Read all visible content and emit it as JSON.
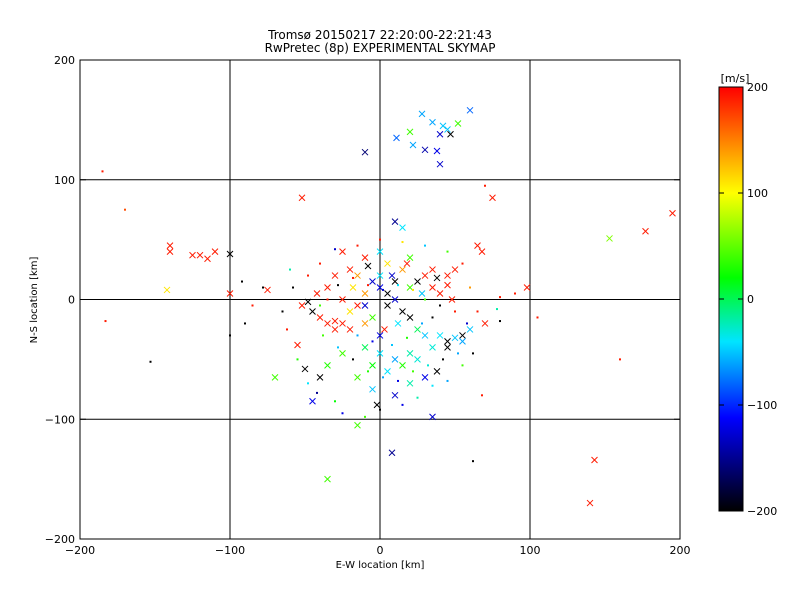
{
  "chart_data": {
    "type": "scatter",
    "title": "Tromsø 20150217 22:20:00-22:21:43",
    "subtitle": "RwPretec (8p) EXPERIMENTAL SKYMAP",
    "xlabel": "E-W location [km]",
    "ylabel": "N-S location [km]",
    "xlim": [
      -200,
      200
    ],
    "ylim": [
      -200,
      200
    ],
    "xticks": [
      -200,
      -100,
      0,
      100,
      200
    ],
    "yticks": [
      -200,
      -100,
      0,
      100,
      200
    ],
    "xtick_labels": [
      "−200",
      "−100",
      "0",
      "100",
      "200"
    ],
    "ytick_labels": [
      "−200",
      "−100",
      "0",
      "100",
      "200"
    ],
    "grid": true,
    "colorbar": {
      "label": "[m/s]",
      "range": [
        -200,
        200
      ],
      "ticks": [
        200,
        100,
        0,
        -100,
        -200
      ],
      "tick_labels": [
        "200",
        "100",
        "0",
        "−100",
        "−200"
      ],
      "colors": [
        "#000000",
        "#0000ff",
        "#00e5ff",
        "#00ff00",
        "#ffff00",
        "#ff0000"
      ]
    },
    "points": [
      {
        "x": 45,
        "y": 142,
        "v": -50,
        "m": "x"
      },
      {
        "x": 52,
        "y": 147,
        "v": 40,
        "m": "x"
      },
      {
        "x": 60,
        "y": 158,
        "v": -80,
        "m": "x"
      },
      {
        "x": 28,
        "y": 155,
        "v": -60,
        "m": "x"
      },
      {
        "x": 35,
        "y": 148,
        "v": -60,
        "m": "x"
      },
      {
        "x": 40,
        "y": 138,
        "v": -130,
        "m": "x"
      },
      {
        "x": 20,
        "y": 140,
        "v": 40,
        "m": "x"
      },
      {
        "x": 38,
        "y": 124,
        "v": -120,
        "m": "x"
      },
      {
        "x": 30,
        "y": 125,
        "v": -140,
        "m": "x"
      },
      {
        "x": 22,
        "y": 129,
        "v": -60,
        "m": "x"
      },
      {
        "x": 40,
        "y": 113,
        "v": -130,
        "m": "x"
      },
      {
        "x": 47,
        "y": 138,
        "v": -200,
        "m": "x"
      },
      {
        "x": 42,
        "y": 145,
        "v": -50,
        "m": "x"
      },
      {
        "x": 11,
        "y": 135,
        "v": -80,
        "m": "x"
      },
      {
        "x": -10,
        "y": 123,
        "v": -160,
        "m": "x"
      },
      {
        "x": -185,
        "y": 107,
        "v": 190,
        "m": "."
      },
      {
        "x": -170,
        "y": 75,
        "v": 170,
        "m": "."
      },
      {
        "x": -52,
        "y": 85,
        "v": 190,
        "m": "x"
      },
      {
        "x": 75,
        "y": 85,
        "v": 190,
        "m": "x"
      },
      {
        "x": 70,
        "y": 95,
        "v": 190,
        "m": "."
      },
      {
        "x": 195,
        "y": 72,
        "v": 190,
        "m": "x"
      },
      {
        "x": 177,
        "y": 57,
        "v": 190,
        "m": "x"
      },
      {
        "x": 153,
        "y": 51,
        "v": 60,
        "m": "x"
      },
      {
        "x": -140,
        "y": 45,
        "v": 190,
        "m": "x"
      },
      {
        "x": -140,
        "y": 40,
        "v": 190,
        "m": "x"
      },
      {
        "x": -125,
        "y": 37,
        "v": 190,
        "m": "x"
      },
      {
        "x": -120,
        "y": 37,
        "v": 190,
        "m": "x"
      },
      {
        "x": -115,
        "y": 34,
        "v": 190,
        "m": "x"
      },
      {
        "x": -110,
        "y": 40,
        "v": 190,
        "m": "x"
      },
      {
        "x": -100,
        "y": 38,
        "v": -200,
        "m": "x"
      },
      {
        "x": -142,
        "y": 8,
        "v": 110,
        "m": "x"
      },
      {
        "x": -100,
        "y": 5,
        "v": 190,
        "m": "x"
      },
      {
        "x": -183,
        "y": -18,
        "v": 190,
        "m": "."
      },
      {
        "x": -153,
        "y": -52,
        "v": -200,
        "m": "."
      },
      {
        "x": -100,
        "y": -30,
        "v": -200,
        "m": "."
      },
      {
        "x": -92,
        "y": 15,
        "v": -200,
        "m": "."
      },
      {
        "x": -75,
        "y": 8,
        "v": 190,
        "m": "x"
      },
      {
        "x": 10,
        "y": 65,
        "v": -150,
        "m": "x"
      },
      {
        "x": 15,
        "y": 60,
        "v": -40,
        "m": "x"
      },
      {
        "x": 98,
        "y": 10,
        "v": 190,
        "m": "x"
      },
      {
        "x": 90,
        "y": 5,
        "v": 190,
        "m": "."
      },
      {
        "x": 65,
        "y": 45,
        "v": 190,
        "m": "x"
      },
      {
        "x": 68,
        "y": 40,
        "v": 190,
        "m": "x"
      },
      {
        "x": 160,
        "y": -50,
        "v": 190,
        "m": "."
      },
      {
        "x": 143,
        "y": -134,
        "v": 190,
        "m": "x"
      },
      {
        "x": 140,
        "y": -170,
        "v": 190,
        "m": "x"
      },
      {
        "x": 62,
        "y": -135,
        "v": -200,
        "m": "."
      },
      {
        "x": 8,
        "y": -128,
        "v": -150,
        "m": "x"
      },
      {
        "x": -35,
        "y": -150,
        "v": 40,
        "m": "x"
      },
      {
        "x": -15,
        "y": -105,
        "v": 40,
        "m": "x"
      },
      {
        "x": 35,
        "y": -98,
        "v": -130,
        "m": "x"
      },
      {
        "x": -45,
        "y": -85,
        "v": -120,
        "m": "x"
      },
      {
        "x": -70,
        "y": -65,
        "v": 40,
        "m": "x"
      },
      {
        "x": -50,
        "y": -58,
        "v": -200,
        "m": "x"
      },
      {
        "x": -40,
        "y": -65,
        "v": -200,
        "m": "x"
      },
      {
        "x": -55,
        "y": -38,
        "v": 190,
        "m": "x"
      },
      {
        "x": 68,
        "y": -80,
        "v": 190,
        "m": "."
      },
      {
        "x": 38,
        "y": -60,
        "v": -200,
        "m": "x"
      },
      {
        "x": 45,
        "y": -35,
        "v": -200,
        "m": "x"
      },
      {
        "x": 55,
        "y": -30,
        "v": -200,
        "m": "x"
      },
      {
        "x": 60,
        "y": -25,
        "v": -50,
        "m": "x"
      },
      {
        "x": 70,
        "y": -20,
        "v": 190,
        "m": "x"
      },
      {
        "x": 80,
        "y": -18,
        "v": -200,
        "m": "."
      },
      {
        "x": 105,
        "y": -15,
        "v": 190,
        "m": "."
      },
      {
        "x": -25,
        "y": 40,
        "v": 190,
        "m": "x"
      },
      {
        "x": -10,
        "y": 35,
        "v": 190,
        "m": "x"
      },
      {
        "x": 0,
        "y": 40,
        "v": -40,
        "m": "x"
      },
      {
        "x": 5,
        "y": 30,
        "v": 110,
        "m": "x"
      },
      {
        "x": 15,
        "y": 25,
        "v": 140,
        "m": "x"
      },
      {
        "x": 20,
        "y": 35,
        "v": 40,
        "m": "x"
      },
      {
        "x": 30,
        "y": 20,
        "v": 190,
        "m": "x"
      },
      {
        "x": 35,
        "y": 25,
        "v": 190,
        "m": "x"
      },
      {
        "x": 45,
        "y": 20,
        "v": 190,
        "m": "x"
      },
      {
        "x": 50,
        "y": 25,
        "v": 190,
        "m": "x"
      },
      {
        "x": 25,
        "y": 15,
        "v": -200,
        "m": "x"
      },
      {
        "x": -5,
        "y": 15,
        "v": -130,
        "m": "x"
      },
      {
        "x": 0,
        "y": 10,
        "v": -120,
        "m": "x"
      },
      {
        "x": 5,
        "y": 5,
        "v": -200,
        "m": "x"
      },
      {
        "x": 10,
        "y": 0,
        "v": -130,
        "m": "x"
      },
      {
        "x": -10,
        "y": 5,
        "v": 140,
        "m": "x"
      },
      {
        "x": -15,
        "y": -5,
        "v": 190,
        "m": "x"
      },
      {
        "x": -20,
        "y": -10,
        "v": 110,
        "m": "x"
      },
      {
        "x": -25,
        "y": -20,
        "v": 190,
        "m": "x"
      },
      {
        "x": -30,
        "y": -18,
        "v": 190,
        "m": "x"
      },
      {
        "x": -35,
        "y": -20,
        "v": 190,
        "m": "x"
      },
      {
        "x": -40,
        "y": -15,
        "v": 190,
        "m": "x"
      },
      {
        "x": -30,
        "y": -25,
        "v": 190,
        "m": "x"
      },
      {
        "x": -20,
        "y": -25,
        "v": 190,
        "m": "x"
      },
      {
        "x": -10,
        "y": -20,
        "v": 140,
        "m": "x"
      },
      {
        "x": -5,
        "y": -15,
        "v": 40,
        "m": "x"
      },
      {
        "x": 15,
        "y": -10,
        "v": -200,
        "m": "x"
      },
      {
        "x": 20,
        "y": -15,
        "v": -200,
        "m": "x"
      },
      {
        "x": 25,
        "y": -25,
        "v": 0,
        "m": "x"
      },
      {
        "x": 30,
        "y": -30,
        "v": -50,
        "m": "x"
      },
      {
        "x": 40,
        "y": -30,
        "v": -40,
        "m": "x"
      },
      {
        "x": 50,
        "y": -32,
        "v": -50,
        "m": "x"
      },
      {
        "x": 55,
        "y": -35,
        "v": -60,
        "m": "x"
      },
      {
        "x": 45,
        "y": -40,
        "v": -200,
        "m": "x"
      },
      {
        "x": 35,
        "y": -40,
        "v": -30,
        "m": "x"
      },
      {
        "x": 20,
        "y": -45,
        "v": -20,
        "m": "x"
      },
      {
        "x": 10,
        "y": -50,
        "v": -60,
        "m": "x"
      },
      {
        "x": 0,
        "y": -45,
        "v": -40,
        "m": "x"
      },
      {
        "x": -10,
        "y": -40,
        "v": 0,
        "m": "x"
      },
      {
        "x": 0,
        "y": -30,
        "v": -120,
        "m": "x"
      },
      {
        "x": -5,
        "y": -55,
        "v": 20,
        "m": "x"
      },
      {
        "x": 5,
        "y": -60,
        "v": -40,
        "m": "x"
      },
      {
        "x": 15,
        "y": -55,
        "v": 30,
        "m": "x"
      },
      {
        "x": 25,
        "y": -50,
        "v": -30,
        "m": "x"
      },
      {
        "x": -25,
        "y": -45,
        "v": 40,
        "m": "x"
      },
      {
        "x": -35,
        "y": -55,
        "v": 30,
        "m": "x"
      },
      {
        "x": -15,
        "y": -65,
        "v": 40,
        "m": "x"
      },
      {
        "x": -5,
        "y": -75,
        "v": -50,
        "m": "x"
      },
      {
        "x": 10,
        "y": -80,
        "v": -130,
        "m": "x"
      },
      {
        "x": -2,
        "y": -88,
        "v": -200,
        "m": "x"
      },
      {
        "x": 20,
        "y": -70,
        "v": -20,
        "m": "x"
      },
      {
        "x": 30,
        "y": -65,
        "v": -120,
        "m": "x"
      },
      {
        "x": -45,
        "y": -10,
        "v": -200,
        "m": "x"
      },
      {
        "x": -48,
        "y": -2,
        "v": -200,
        "m": "x"
      },
      {
        "x": -52,
        "y": -5,
        "v": 190,
        "m": "x"
      },
      {
        "x": -42,
        "y": 5,
        "v": 190,
        "m": "x"
      },
      {
        "x": -35,
        "y": 10,
        "v": 190,
        "m": "x"
      },
      {
        "x": -30,
        "y": 20,
        "v": 190,
        "m": "x"
      },
      {
        "x": -20,
        "y": 25,
        "v": 190,
        "m": "x"
      },
      {
        "x": -15,
        "y": 20,
        "v": 140,
        "m": "x"
      },
      {
        "x": 0,
        "y": 20,
        "v": -40,
        "m": "x"
      },
      {
        "x": 10,
        "y": 15,
        "v": -200,
        "m": "x"
      },
      {
        "x": 20,
        "y": 10,
        "v": 40,
        "m": "x"
      },
      {
        "x": 28,
        "y": 5,
        "v": -50,
        "m": "x"
      },
      {
        "x": 35,
        "y": 10,
        "v": 190,
        "m": "x"
      },
      {
        "x": 40,
        "y": 5,
        "v": 190,
        "m": "x"
      },
      {
        "x": 48,
        "y": 0,
        "v": 190,
        "m": "x"
      },
      {
        "x": 45,
        "y": 12,
        "v": 190,
        "m": "x"
      },
      {
        "x": 38,
        "y": 18,
        "v": -200,
        "m": "x"
      },
      {
        "x": 18,
        "y": 30,
        "v": 190,
        "m": "x"
      },
      {
        "x": 8,
        "y": 20,
        "v": -130,
        "m": "x"
      },
      {
        "x": -8,
        "y": 28,
        "v": -200,
        "m": "x"
      },
      {
        "x": -18,
        "y": 10,
        "v": 110,
        "m": "x"
      },
      {
        "x": -25,
        "y": 0,
        "v": 190,
        "m": "x"
      },
      {
        "x": -10,
        "y": -5,
        "v": -130,
        "m": "x"
      },
      {
        "x": 5,
        "y": -5,
        "v": -200,
        "m": "x"
      },
      {
        "x": 12,
        "y": -20,
        "v": -40,
        "m": "x"
      },
      {
        "x": 3,
        "y": -25,
        "v": 190,
        "m": "x"
      },
      {
        "x": -60,
        "y": 25,
        "v": -20,
        "m": "."
      },
      {
        "x": -58,
        "y": 10,
        "v": -200,
        "m": "."
      },
      {
        "x": -65,
        "y": -10,
        "v": -200,
        "m": "."
      },
      {
        "x": -62,
        "y": -25,
        "v": 190,
        "m": "."
      },
      {
        "x": -55,
        "y": -50,
        "v": 30,
        "m": "."
      },
      {
        "x": -48,
        "y": -70,
        "v": -40,
        "m": "."
      },
      {
        "x": -42,
        "y": -78,
        "v": -150,
        "m": "."
      },
      {
        "x": -30,
        "y": -85,
        "v": 20,
        "m": "."
      },
      {
        "x": -25,
        "y": -95,
        "v": -120,
        "m": "."
      },
      {
        "x": -10,
        "y": -98,
        "v": 40,
        "m": "."
      },
      {
        "x": 0,
        "y": -92,
        "v": -200,
        "m": "."
      },
      {
        "x": 15,
        "y": -88,
        "v": -120,
        "m": "."
      },
      {
        "x": 25,
        "y": -82,
        "v": -20,
        "m": "."
      },
      {
        "x": 35,
        "y": -72,
        "v": -40,
        "m": "."
      },
      {
        "x": 45,
        "y": -68,
        "v": -60,
        "m": "."
      },
      {
        "x": 55,
        "y": -55,
        "v": 40,
        "m": "."
      },
      {
        "x": 62,
        "y": -45,
        "v": -200,
        "m": "."
      },
      {
        "x": 65,
        "y": -10,
        "v": 190,
        "m": "."
      },
      {
        "x": 60,
        "y": 10,
        "v": 140,
        "m": "."
      },
      {
        "x": 55,
        "y": 30,
        "v": 190,
        "m": "."
      },
      {
        "x": 45,
        "y": 40,
        "v": 40,
        "m": "."
      },
      {
        "x": 30,
        "y": 45,
        "v": -50,
        "m": "."
      },
      {
        "x": 15,
        "y": 48,
        "v": 110,
        "m": "."
      },
      {
        "x": 0,
        "y": 50,
        "v": 190,
        "m": "."
      },
      {
        "x": -15,
        "y": 45,
        "v": 190,
        "m": "."
      },
      {
        "x": -30,
        "y": 42,
        "v": -130,
        "m": "."
      },
      {
        "x": -40,
        "y": 30,
        "v": 190,
        "m": "."
      },
      {
        "x": -48,
        "y": 20,
        "v": 190,
        "m": "."
      },
      {
        "x": -38,
        "y": -30,
        "v": 40,
        "m": "."
      },
      {
        "x": -28,
        "y": -40,
        "v": -50,
        "m": "."
      },
      {
        "x": -18,
        "y": -50,
        "v": -200,
        "m": "."
      },
      {
        "x": -8,
        "y": -60,
        "v": 30,
        "m": "."
      },
      {
        "x": 2,
        "y": -65,
        "v": -60,
        "m": "."
      },
      {
        "x": 12,
        "y": -68,
        "v": -120,
        "m": "."
      },
      {
        "x": 22,
        "y": -60,
        "v": 40,
        "m": "."
      },
      {
        "x": 32,
        "y": -55,
        "v": -30,
        "m": "."
      },
      {
        "x": 42,
        "y": -50,
        "v": -200,
        "m": "."
      },
      {
        "x": 52,
        "y": -45,
        "v": -60,
        "m": "."
      },
      {
        "x": 58,
        "y": -20,
        "v": -130,
        "m": "."
      },
      {
        "x": 50,
        "y": -10,
        "v": 190,
        "m": "."
      },
      {
        "x": 40,
        "y": -5,
        "v": -200,
        "m": "."
      },
      {
        "x": 30,
        "y": 0,
        "v": 40,
        "m": "."
      },
      {
        "x": 22,
        "y": 8,
        "v": 110,
        "m": "."
      },
      {
        "x": 12,
        "y": 12,
        "v": -40,
        "m": "."
      },
      {
        "x": 2,
        "y": 8,
        "v": -130,
        "m": "."
      },
      {
        "x": -8,
        "y": 12,
        "v": 190,
        "m": "."
      },
      {
        "x": -18,
        "y": 18,
        "v": 190,
        "m": "."
      },
      {
        "x": -28,
        "y": 12,
        "v": -200,
        "m": "."
      },
      {
        "x": -35,
        "y": 0,
        "v": 190,
        "m": "."
      },
      {
        "x": -40,
        "y": -5,
        "v": 40,
        "m": "."
      },
      {
        "x": -15,
        "y": -30,
        "v": -60,
        "m": "."
      },
      {
        "x": -5,
        "y": -35,
        "v": -120,
        "m": "."
      },
      {
        "x": 8,
        "y": -38,
        "v": -50,
        "m": "."
      },
      {
        "x": 18,
        "y": -32,
        "v": 30,
        "m": "."
      },
      {
        "x": 28,
        "y": -20,
        "v": -60,
        "m": "."
      },
      {
        "x": 35,
        "y": -15,
        "v": -200,
        "m": "."
      },
      {
        "x": -78,
        "y": 10,
        "v": -200,
        "m": "."
      },
      {
        "x": -85,
        "y": -5,
        "v": 190,
        "m": "."
      },
      {
        "x": -90,
        "y": -20,
        "v": -200,
        "m": "."
      },
      {
        "x": 80,
        "y": 2,
        "v": 190,
        "m": "."
      },
      {
        "x": 78,
        "y": -8,
        "v": -20,
        "m": "."
      }
    ]
  }
}
